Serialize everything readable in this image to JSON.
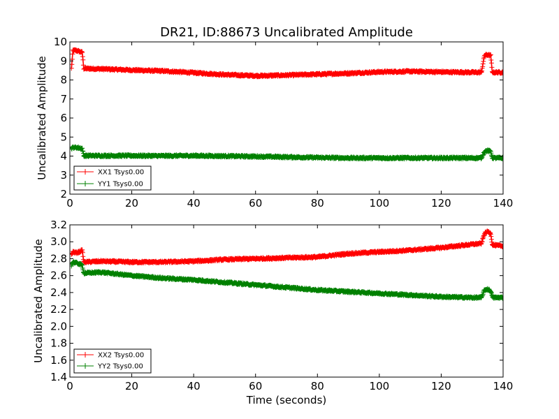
{
  "colors": {
    "XX": "#ff0000",
    "YY": "#008000"
  },
  "chart_data": [
    {
      "type": "line",
      "title": "DR21, ID:88673 Uncalibrated Amplitude",
      "xlabel": "",
      "ylabel": "Uncalibrated Amplitude",
      "xlim": [
        0,
        140
      ],
      "ylim": [
        2,
        10
      ],
      "xticks": [
        0,
        20,
        40,
        60,
        80,
        100,
        120,
        140
      ],
      "yticks": [
        2,
        3,
        4,
        5,
        6,
        7,
        8,
        9,
        10
      ],
      "xtick_labels": [
        "0",
        "20",
        "40",
        "60",
        "80",
        "100",
        "120",
        "140"
      ],
      "ytick_labels": [
        "2",
        "3",
        "4",
        "5",
        "6",
        "7",
        "8",
        "9",
        "10"
      ],
      "legend": "lower-left",
      "grid": false,
      "series": [
        {
          "name": "XX1 Tsys0.00",
          "color": "#ff0000",
          "marker": "+",
          "x": [
            0.5,
            1,
            2,
            3,
            4,
            4.5,
            5,
            10,
            20,
            30,
            40,
            50,
            60,
            62,
            70,
            80,
            90,
            100,
            110,
            120,
            130,
            133,
            134,
            135,
            136,
            136.5,
            137,
            140
          ],
          "y": [
            8.6,
            9.55,
            9.55,
            9.5,
            9.45,
            8.6,
            8.6,
            8.58,
            8.52,
            8.47,
            8.38,
            8.28,
            8.22,
            8.22,
            8.25,
            8.3,
            8.35,
            8.42,
            8.45,
            8.42,
            8.4,
            8.4,
            9.3,
            9.32,
            9.28,
            8.42,
            8.4,
            8.4
          ]
        },
        {
          "name": "YY1 Tsys0.00",
          "color": "#008000",
          "marker": "+",
          "x": [
            0.5,
            1,
            2,
            3,
            4,
            4.5,
            5,
            10,
            20,
            30,
            40,
            50,
            60,
            70,
            80,
            90,
            100,
            110,
            120,
            130,
            133,
            134,
            135,
            136,
            136.5,
            137,
            140
          ],
          "y": [
            4.4,
            4.45,
            4.45,
            4.43,
            4.4,
            4.02,
            4.02,
            4.02,
            4.02,
            4.01,
            4.02,
            4.0,
            3.98,
            3.95,
            3.92,
            3.9,
            3.9,
            3.9,
            3.9,
            3.9,
            3.9,
            4.25,
            4.28,
            4.25,
            3.92,
            3.9,
            3.9
          ]
        }
      ]
    },
    {
      "type": "line",
      "title": "",
      "xlabel": "Time (seconds)",
      "ylabel": "Uncalibrated Amplitude",
      "xlim": [
        0,
        140
      ],
      "ylim": [
        1.4,
        3.2
      ],
      "xticks": [
        0,
        20,
        40,
        60,
        80,
        100,
        120,
        140
      ],
      "yticks": [
        1.4,
        1.6,
        1.8,
        2.0,
        2.2,
        2.4,
        2.6,
        2.8,
        3.0,
        3.2
      ],
      "xtick_labels": [
        "0",
        "20",
        "40",
        "60",
        "80",
        "100",
        "120",
        "140"
      ],
      "ytick_labels": [
        "1.4",
        "1.6",
        "1.8",
        "2.0",
        "2.2",
        "2.4",
        "2.6",
        "2.8",
        "3.0",
        "3.2"
      ],
      "legend": "lower-left",
      "grid": false,
      "series": [
        {
          "name": "XX2 Tsys0.00",
          "color": "#ff0000",
          "marker": "+",
          "x": [
            0.5,
            1,
            2,
            3,
            4,
            4.5,
            5,
            10,
            20,
            30,
            40,
            50,
            60,
            70,
            80,
            90,
            100,
            110,
            120,
            130,
            133,
            134,
            135,
            136,
            136.5,
            137,
            140
          ],
          "y": [
            2.85,
            2.88,
            2.87,
            2.88,
            2.9,
            2.76,
            2.76,
            2.77,
            2.76,
            2.76,
            2.77,
            2.79,
            2.8,
            2.81,
            2.82,
            2.86,
            2.88,
            2.9,
            2.93,
            2.97,
            2.98,
            3.1,
            3.12,
            3.1,
            2.97,
            2.96,
            2.95
          ]
        },
        {
          "name": "YY2 Tsys0.00",
          "color": "#008000",
          "marker": "+",
          "x": [
            0.5,
            1,
            2,
            3,
            4,
            4.5,
            5,
            10,
            20,
            30,
            40,
            50,
            60,
            70,
            80,
            90,
            100,
            110,
            120,
            130,
            133,
            134,
            135,
            136,
            136.5,
            137,
            140
          ],
          "y": [
            2.72,
            2.76,
            2.75,
            2.74,
            2.72,
            2.63,
            2.63,
            2.64,
            2.6,
            2.57,
            2.55,
            2.52,
            2.49,
            2.46,
            2.43,
            2.41,
            2.39,
            2.37,
            2.35,
            2.34,
            2.34,
            2.43,
            2.44,
            2.42,
            2.35,
            2.34,
            2.34
          ]
        }
      ]
    }
  ]
}
